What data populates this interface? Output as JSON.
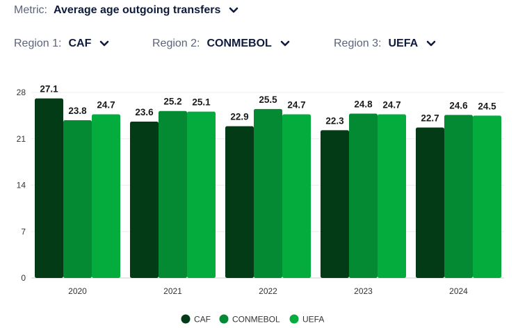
{
  "controls": {
    "metric": {
      "label": "Metric:",
      "value": "Average age outgoing transfers"
    },
    "region1": {
      "label": "Region 1:",
      "value": "CAF"
    },
    "region2": {
      "label": "Region 2:",
      "value": "CONMEBOL"
    },
    "region3": {
      "label": "Region 3:",
      "value": "UEFA"
    }
  },
  "icons": {
    "dropdown": "chevron-down-icon",
    "legend_marker": "circle"
  },
  "colors": {
    "CAF": "#043b17",
    "CONMEBOL": "#038a33",
    "UEFA": "#04ac3d",
    "text": "#0f1b3d"
  },
  "chart_data": {
    "type": "bar",
    "categories": [
      "2020",
      "2021",
      "2022",
      "2023",
      "2024"
    ],
    "series": [
      {
        "name": "CAF",
        "values": [
          27.1,
          23.6,
          22.9,
          22.3,
          22.7
        ],
        "color": "#043b17"
      },
      {
        "name": "CONMEBOL",
        "values": [
          23.8,
          25.2,
          25.5,
          24.8,
          24.6
        ],
        "color": "#038a33"
      },
      {
        "name": "UEFA",
        "values": [
          24.7,
          25.1,
          24.7,
          24.7,
          24.5
        ],
        "color": "#04ac3d"
      }
    ],
    "yticks": [
      0,
      7,
      14,
      21,
      28
    ],
    "ylim": [
      0,
      28
    ],
    "data_labels": true,
    "grid": true,
    "legend": "bottom-center"
  }
}
